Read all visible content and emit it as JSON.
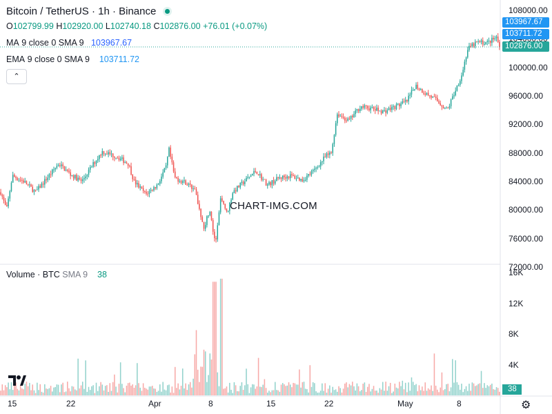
{
  "header": {
    "symbol": "Bitcoin / TetherUS · 1h · Binance",
    "o_label": "O",
    "o_value": "102799.99",
    "h_label": "H",
    "h_value": "102920.00",
    "l_label": "L",
    "l_value": "102740.18",
    "c_label": "C",
    "c_value": "102876.00",
    "change": "+76.01 (+0.07%)",
    "ma_label": "MA",
    "ma_params": "9 close 0 SMA 9",
    "ma_value": "103967.67",
    "ema_label": "EMA",
    "ema_params": "9 close 0 SMA 9",
    "ema_value": "103711.72",
    "collapse_icon": "chevron-up-icon"
  },
  "volume_header": {
    "label": "Volume · BTC",
    "params": "SMA 9",
    "value": "38"
  },
  "watermark": "CHART-IMG.COM",
  "colors": {
    "up": "#26a69a",
    "down": "#ef5350",
    "ma": "#2962ff",
    "ema": "#2196f3",
    "last": "#26a69a"
  },
  "price_badges": {
    "ma": "103967.67",
    "ema": "103711.72",
    "last": "102876.00"
  },
  "volume_badge": "38",
  "chart_data": {
    "type": "candlestick",
    "title": "Bitcoin / TetherUS · 1h · Binance",
    "price_axis": {
      "ticks": [
        "108000.00",
        "104000.00",
        "100000.00",
        "96000.00",
        "92000.00",
        "88000.00",
        "84000.00",
        "80000.00",
        "76000.00",
        "72000.00"
      ],
      "range": [
        72000,
        108000
      ]
    },
    "volume_axis": {
      "ticks": [
        "16K",
        "12K",
        "8K",
        "4K"
      ],
      "range": [
        0,
        16000
      ]
    },
    "x_ticks": [
      "15",
      "22",
      "Apr",
      "8",
      "15",
      "22",
      "May",
      "8"
    ],
    "price_path": [
      {
        "x": 0,
        "y": 82500
      },
      {
        "x": 1,
        "y": 80000
      },
      {
        "x": 2,
        "y": 84800
      },
      {
        "x": 4,
        "y": 84000
      },
      {
        "x": 6,
        "y": 82500
      },
      {
        "x": 8,
        "y": 84500
      },
      {
        "x": 10,
        "y": 86500
      },
      {
        "x": 12,
        "y": 85000
      },
      {
        "x": 14,
        "y": 84000
      },
      {
        "x": 16,
        "y": 86500
      },
      {
        "x": 17.5,
        "y": 88200
      },
      {
        "x": 20,
        "y": 87500
      },
      {
        "x": 22,
        "y": 86500
      },
      {
        "x": 23,
        "y": 84000
      },
      {
        "x": 25,
        "y": 82200
      },
      {
        "x": 27,
        "y": 83500
      },
      {
        "x": 28.5,
        "y": 86000
      },
      {
        "x": 29,
        "y": 88500
      },
      {
        "x": 30,
        "y": 84500
      },
      {
        "x": 32,
        "y": 83800
      },
      {
        "x": 33.5,
        "y": 82800
      },
      {
        "x": 35,
        "y": 77500
      },
      {
        "x": 36,
        "y": 80000
      },
      {
        "x": 37,
        "y": 75000
      },
      {
        "x": 38,
        "y": 82000
      },
      {
        "x": 39,
        "y": 79500
      },
      {
        "x": 40,
        "y": 82500
      },
      {
        "x": 42,
        "y": 84000
      },
      {
        "x": 44,
        "y": 85500
      },
      {
        "x": 46,
        "y": 83500
      },
      {
        "x": 48,
        "y": 84500
      },
      {
        "x": 50,
        "y": 84800
      },
      {
        "x": 52,
        "y": 84200
      },
      {
        "x": 54,
        "y": 85500
      },
      {
        "x": 56,
        "y": 87500
      },
      {
        "x": 57,
        "y": 88000
      },
      {
        "x": 58,
        "y": 93500
      },
      {
        "x": 60,
        "y": 92500
      },
      {
        "x": 62,
        "y": 94500
      },
      {
        "x": 64,
        "y": 94200
      },
      {
        "x": 66,
        "y": 93800
      },
      {
        "x": 68,
        "y": 94500
      },
      {
        "x": 70,
        "y": 95200
      },
      {
        "x": 71.5,
        "y": 97500
      },
      {
        "x": 73,
        "y": 96500
      },
      {
        "x": 75,
        "y": 95500
      },
      {
        "x": 77,
        "y": 94000
      },
      {
        "x": 78,
        "y": 96000
      },
      {
        "x": 79.5,
        "y": 99000
      },
      {
        "x": 80.5,
        "y": 102500
      },
      {
        "x": 82,
        "y": 103500
      },
      {
        "x": 84,
        "y": 103500
      },
      {
        "x": 85.5,
        "y": 104200
      },
      {
        "x": 86,
        "y": 102876
      }
    ],
    "last_price": 102876.0,
    "ma_value": 103967.67,
    "ema_value": 103711.72,
    "volume_sma_value": 38
  }
}
